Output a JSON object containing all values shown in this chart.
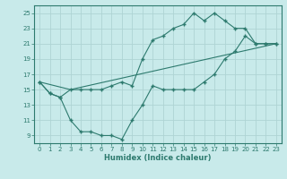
{
  "xlabel": "Humidex (Indice chaleur)",
  "ylabel": "",
  "xlim": [
    -0.5,
    23.5
  ],
  "ylim": [
    8,
    26
  ],
  "yticks": [
    9,
    11,
    13,
    15,
    17,
    19,
    21,
    23,
    25
  ],
  "xticks": [
    0,
    1,
    2,
    3,
    4,
    5,
    6,
    7,
    8,
    9,
    10,
    11,
    12,
    13,
    14,
    15,
    16,
    17,
    18,
    19,
    20,
    21,
    22,
    23
  ],
  "bg_color": "#c8eaea",
  "grid_color": "#aed4d4",
  "line_color": "#2d7a6e",
  "line1_x": [
    0,
    1,
    2,
    3,
    4,
    5,
    6,
    7,
    8,
    9,
    10,
    11,
    12,
    13,
    14,
    15,
    16,
    17,
    18,
    19,
    20,
    21,
    22,
    23
  ],
  "line1_y": [
    16,
    14.5,
    14,
    15,
    15,
    15,
    15,
    15.5,
    16,
    15.5,
    19.0,
    21.5,
    22,
    23,
    23.5,
    25,
    24,
    25,
    24,
    23,
    23,
    21,
    21,
    21
  ],
  "line2_x": [
    0,
    1,
    2,
    3,
    4,
    5,
    6,
    7,
    8,
    9,
    10,
    11,
    12,
    13,
    14,
    15,
    16,
    17,
    18,
    19,
    20,
    21,
    22,
    23
  ],
  "line2_y": [
    16,
    14.5,
    14,
    11,
    9.5,
    9.5,
    9,
    9,
    8.5,
    11,
    13,
    15.5,
    15,
    15,
    15,
    15,
    16,
    17,
    19,
    20,
    22,
    21,
    21,
    21
  ],
  "line3_x": [
    0,
    3,
    23
  ],
  "line3_y": [
    16,
    15,
    21
  ]
}
